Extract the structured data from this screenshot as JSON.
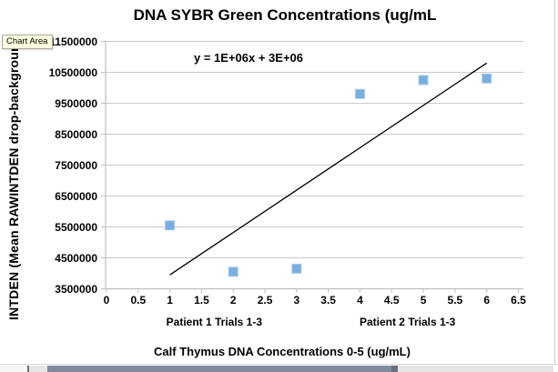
{
  "tooltip": {
    "label": "Chart Area"
  },
  "chart_data": {
    "type": "scatter",
    "title": "DNA SYBR Green Concentrations (ug/mL",
    "ylabel": "INTDEN (Mean RAWINTDEN drop-background",
    "xlabel": "Calf Thymus DNA Concentrations 0-5 (ug/mL)",
    "equation": "y = 1E+06x + 3E+06",
    "points": [
      {
        "x": 1,
        "y": 5550000
      },
      {
        "x": 2,
        "y": 4050000
      },
      {
        "x": 3,
        "y": 4150000
      },
      {
        "x": 4,
        "y": 9800000
      },
      {
        "x": 5,
        "y": 10250000
      },
      {
        "x": 6,
        "y": 10300000
      }
    ],
    "trendline": {
      "x1": 1.0,
      "y1": 3950000,
      "x2": 6.0,
      "y2": 10800000
    },
    "xlim": [
      0,
      6.5
    ],
    "ylim": [
      3500000,
      11500000
    ],
    "x_tick_labels": [
      "0",
      "0.5",
      "1",
      "1.5",
      "2",
      "2.5",
      "3",
      "3.5",
      "4",
      "4.5",
      "5",
      "5.5",
      "6",
      "6.5"
    ],
    "y_tick_labels": [
      "3500000",
      "4500000",
      "5500000",
      "6500000",
      "7500000",
      "8500000",
      "9500000",
      "10500000",
      "11500000"
    ],
    "group_labels": [
      {
        "label": "Patient 1 Trials 1-3",
        "x": 1.7
      },
      {
        "label": "Patient 2 Trials 1-3",
        "x": 4.75
      }
    ],
    "grid": true,
    "legend": "none",
    "colors": {
      "marker_fill": "#79AFDF",
      "marker_stroke": "#A6C9EA",
      "gridline": "#C9C9C9",
      "axis": "#BFBFBF",
      "trendline": "#000000",
      "tooltip_bg": "#FFFFE1"
    }
  }
}
